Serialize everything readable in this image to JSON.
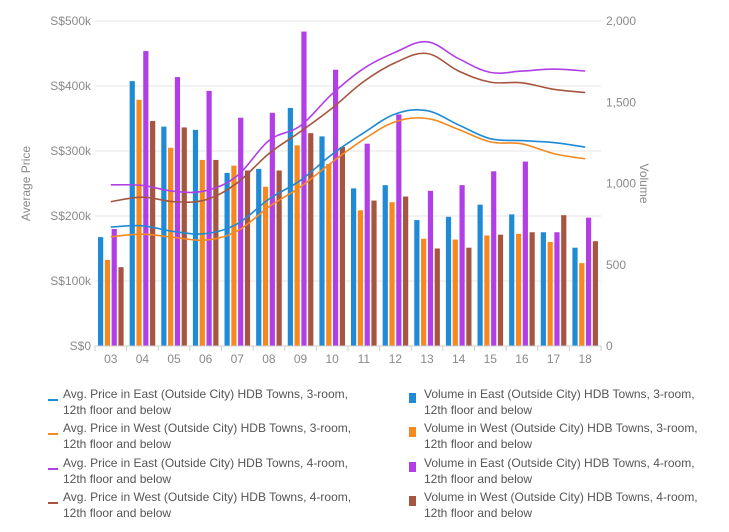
{
  "chart_data": {
    "type": "bar-line-combo",
    "categories": [
      "03",
      "04",
      "05",
      "06",
      "07",
      "08",
      "09",
      "10",
      "11",
      "12",
      "13",
      "14",
      "15",
      "16",
      "17",
      "18"
    ],
    "y_left": {
      "label": "Average Price",
      "ticks": [
        "S$0",
        "S$100k",
        "S$200k",
        "S$300k",
        "S$400k",
        "S$500k"
      ],
      "range": [
        0,
        500000
      ]
    },
    "y_right": {
      "label": "Volume",
      "ticks": [
        "0",
        "500",
        "1,000",
        "1,500",
        "2,000"
      ],
      "range": [
        0,
        2000
      ]
    },
    "grid": true,
    "legend_position": "bottom",
    "bar_series": [
      {
        "name": "Volume in East (Outside City) HDB Towns, 3-room, 12th floor and below",
        "color": "#1f8ad6",
        "values": [
          670,
          1630,
          1350,
          1330,
          1065,
          1090,
          1465,
          1290,
          970,
          990,
          775,
          795,
          870,
          810,
          700,
          605
        ]
      },
      {
        "name": "Volume in West (Outside City) HDB Towns, 3-room, 12th floor and below",
        "color": "#f5891f",
        "values": [
          530,
          1515,
          1220,
          1145,
          1110,
          980,
          1235,
          1120,
          835,
          885,
          660,
          655,
          680,
          690,
          640,
          510
        ]
      },
      {
        "name": "Volume in East (Outside City) HDB Towns, 4-room, 12th floor and below",
        "color": "#b23ee6",
        "values": [
          720,
          1815,
          1655,
          1570,
          1405,
          1435,
          1935,
          1700,
          1245,
          1425,
          955,
          990,
          1075,
          1135,
          700,
          790
        ]
      },
      {
        "name": "Volume in West (Outside City) HDB Towns, 4-room, 12th floor and below",
        "color": "#a55540",
        "values": [
          485,
          1385,
          1345,
          1145,
          1080,
          1080,
          1310,
          1225,
          895,
          920,
          600,
          605,
          685,
          700,
          805,
          645
        ]
      }
    ],
    "line_series": [
      {
        "name": "Avg. Price in East (Outside City) HDB Towns, 3-room, 12th floor and below",
        "color": "#1f8ad6",
        "values": [
          183000,
          185000,
          176000,
          173000,
          188000,
          226000,
          255000,
          295000,
          328000,
          357000,
          362000,
          340000,
          319000,
          316000,
          313000,
          306000
        ]
      },
      {
        "name": "Avg. Price in West (Outside City) HDB Towns, 3-room, 12th floor and below",
        "color": "#f5891f",
        "values": [
          168000,
          172000,
          167000,
          163000,
          177000,
          214000,
          245000,
          283000,
          318000,
          345000,
          350000,
          333000,
          314000,
          311000,
          296000,
          288000
        ]
      },
      {
        "name": "Avg. Price in East (Outside City) HDB Towns, 4-room, 12th floor and below",
        "color": "#b23ee6",
        "values": [
          248000,
          247000,
          238000,
          239000,
          262000,
          316000,
          339000,
          388000,
          427000,
          452000,
          468000,
          442000,
          421000,
          423000,
          426000,
          423000
        ]
      },
      {
        "name": "Avg. Price in West (Outside City) HDB Towns, 4-room, 12th floor and below",
        "color": "#a55540",
        "values": [
          222000,
          229000,
          222000,
          225000,
          251000,
          296000,
          330000,
          366000,
          407000,
          436000,
          450000,
          423000,
          406000,
          405000,
          395000,
          390000
        ]
      }
    ]
  }
}
